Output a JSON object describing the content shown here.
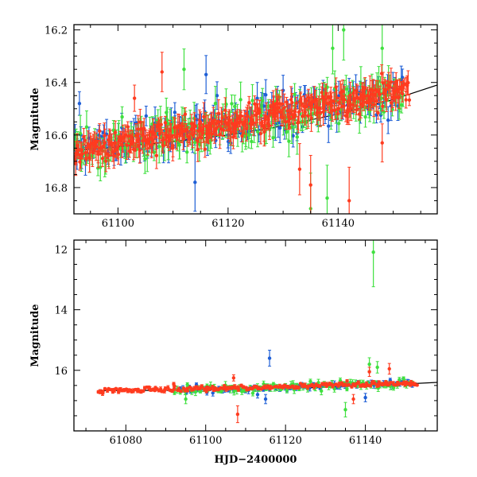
{
  "chart_data": [
    {
      "type": "scatter",
      "panel": "top",
      "xlabel": "",
      "ylabel": "Magnitude",
      "xlim": [
        61092,
        61158
      ],
      "ylim": [
        16.9,
        16.18
      ],
      "y_inverted": true,
      "xticks": [
        61100,
        61120,
        61140
      ],
      "yticks": [
        16.2,
        16.4,
        16.6,
        16.8
      ],
      "ytick_labels": [
        "16.2",
        "16.4",
        "16.6",
        "16.8"
      ],
      "model_curve": {
        "x": [
          61092,
          61100,
          61110,
          61120,
          61130,
          61140,
          61150,
          61158
        ],
        "y": [
          16.66,
          16.645,
          16.625,
          16.6,
          16.565,
          16.52,
          16.465,
          16.41
        ]
      },
      "series": [
        {
          "name": "blue",
          "color": "#1f5fd6",
          "x_range": [
            61092,
            61152
          ],
          "trend": {
            "start": 16.66,
            "end": 16.44
          },
          "scatter": 0.035,
          "n": 180,
          "outliers": [
            {
              "x": 61093,
              "y": 16.48
            },
            {
              "x": 61116,
              "y": 16.37
            },
            {
              "x": 61118,
              "y": 16.45
            },
            {
              "x": 61130,
              "y": 16.43
            },
            {
              "x": 61114,
              "y": 16.78
            }
          ]
        },
        {
          "name": "green",
          "color": "#3fe03f",
          "x_range": [
            61092,
            61152
          ],
          "trend": {
            "start": 16.66,
            "end": 16.44
          },
          "scatter": 0.04,
          "n": 200,
          "outliers": [
            {
              "x": 61112,
              "y": 16.35
            },
            {
              "x": 61132,
              "y": 16.54
            },
            {
              "x": 61139,
              "y": 16.27
            },
            {
              "x": 61141,
              "y": 16.2
            },
            {
              "x": 61148,
              "y": 16.27
            },
            {
              "x": 61138,
              "y": 16.84
            },
            {
              "x": 61135,
              "y": 16.88
            }
          ]
        },
        {
          "name": "red",
          "color": "#ff3b1f",
          "x_range": [
            61092,
            61153
          ],
          "trend": {
            "start": 16.66,
            "end": 16.43
          },
          "scatter": 0.03,
          "n": 360,
          "outliers": [
            {
              "x": 61108,
              "y": 16.36
            },
            {
              "x": 61103,
              "y": 16.46
            },
            {
              "x": 61133,
              "y": 16.73
            },
            {
              "x": 61135,
              "y": 16.79
            },
            {
              "x": 61148,
              "y": 16.63
            },
            {
              "x": 61142,
              "y": 16.85
            }
          ]
        }
      ]
    },
    {
      "type": "scatter",
      "panel": "bottom",
      "xlabel": "HJD−2400000",
      "ylabel": "Magnitude",
      "xlim": [
        61067,
        61158
      ],
      "ylim": [
        18.0,
        11.7
      ],
      "y_inverted": true,
      "xticks": [
        61080,
        61100,
        61120,
        61140
      ],
      "yticks": [
        12,
        14,
        16
      ],
      "ytick_labels": [
        "12",
        "14",
        "16"
      ],
      "model_curve": {
        "x": [
          61073,
          61090,
          61110,
          61130,
          61150,
          61158
        ],
        "y": [
          16.67,
          16.66,
          16.63,
          16.56,
          16.45,
          16.4
        ]
      },
      "series": [
        {
          "name": "blue",
          "color": "#1f5fd6",
          "x_range": [
            61092,
            61152
          ],
          "trend": {
            "start": 16.66,
            "end": 16.44
          },
          "scatter": 0.06,
          "n": 90,
          "outliers": [
            {
              "x": 61116,
              "y": 15.6
            },
            {
              "x": 61115,
              "y": 16.95
            },
            {
              "x": 61140,
              "y": 16.9
            },
            {
              "x": 61113,
              "y": 16.8
            }
          ]
        },
        {
          "name": "green",
          "color": "#3fe03f",
          "x_range": [
            61092,
            61152
          ],
          "trend": {
            "start": 16.66,
            "end": 16.44
          },
          "scatter": 0.07,
          "n": 100,
          "outliers": [
            {
              "x": 61142,
              "y": 12.1
            },
            {
              "x": 61141,
              "y": 15.8
            },
            {
              "x": 61095,
              "y": 16.95
            },
            {
              "x": 61135,
              "y": 17.3
            },
            {
              "x": 61143,
              "y": 15.9
            }
          ]
        },
        {
          "name": "red",
          "color": "#ff3b1f",
          "x_range": [
            61073,
            61153
          ],
          "trend": {
            "start": 16.68,
            "end": 16.43
          },
          "scatter": 0.04,
          "n": 200,
          "outliers": [
            {
              "x": 61108,
              "y": 17.45
            },
            {
              "x": 61107,
              "y": 16.25
            },
            {
              "x": 61141,
              "y": 16.05
            },
            {
              "x": 61146,
              "y": 15.95
            },
            {
              "x": 61092,
              "y": 16.45
            },
            {
              "x": 61137,
              "y": 16.95
            }
          ]
        }
      ]
    }
  ]
}
